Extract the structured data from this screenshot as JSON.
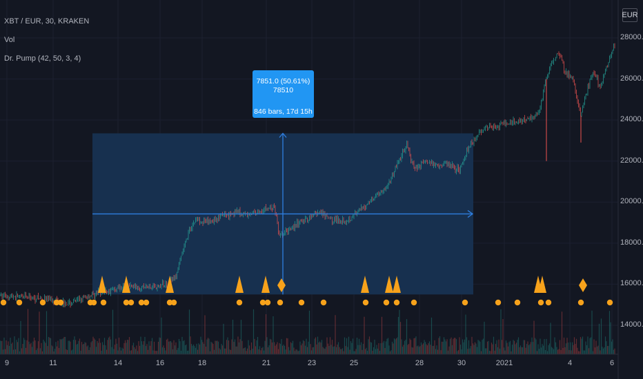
{
  "header": {
    "symbol": "XBT / EUR, 30, KRAKEN",
    "vol": "Vol",
    "indicator": "Dr. Pump (42, 50, 3, 4)"
  },
  "currency_button": "EUR",
  "measurement": {
    "line1": "7851.0 (50.61%) 78510",
    "line2": "846 bars, 17d 15h"
  },
  "chart_data": {
    "type": "candlestick",
    "y_axis": {
      "ticks": [
        28000,
        26000,
        24000,
        22000,
        20000,
        18000,
        16000,
        14000
      ],
      "tick_labels": [
        "28000.0",
        "26000.0",
        "24000.0",
        "22000.0",
        "20000.0",
        "18000.0",
        "16000.0",
        "14000.0"
      ]
    },
    "x_axis": {
      "tick_labels": [
        "9",
        "11",
        "14",
        "16",
        "18",
        "21",
        "23",
        "25",
        "28",
        "30",
        "2021",
        "4",
        "6"
      ]
    },
    "price_path": [
      [
        0,
        15450
      ],
      [
        40,
        15350
      ],
      [
        80,
        15250
      ],
      [
        100,
        15050
      ],
      [
        120,
        15300
      ],
      [
        140,
        15550
      ],
      [
        160,
        15700
      ],
      [
        180,
        15900
      ],
      [
        200,
        15850
      ],
      [
        230,
        15900
      ],
      [
        245,
        16050
      ],
      [
        255,
        16400
      ],
      [
        265,
        17600
      ],
      [
        275,
        18700
      ],
      [
        285,
        19200
      ],
      [
        300,
        19000
      ],
      [
        320,
        19300
      ],
      [
        340,
        19500
      ],
      [
        360,
        19400
      ],
      [
        380,
        19600
      ],
      [
        398,
        19750
      ],
      [
        405,
        18300
      ],
      [
        420,
        18700
      ],
      [
        440,
        19100
      ],
      [
        460,
        19500
      ],
      [
        480,
        19150
      ],
      [
        500,
        19100
      ],
      [
        520,
        19500
      ],
      [
        540,
        20200
      ],
      [
        560,
        20700
      ],
      [
        575,
        21800
      ],
      [
        590,
        22800
      ],
      [
        600,
        21600
      ],
      [
        615,
        22000
      ],
      [
        635,
        21800
      ],
      [
        650,
        21900
      ],
      [
        665,
        21500
      ],
      [
        680,
        22700
      ],
      [
        700,
        23600
      ],
      [
        720,
        23700
      ],
      [
        740,
        23900
      ],
      [
        760,
        24000
      ],
      [
        780,
        24300
      ],
      [
        790,
        25800
      ],
      [
        800,
        26800
      ],
      [
        810,
        27300
      ],
      [
        820,
        26300
      ],
      [
        830,
        26000
      ],
      [
        842,
        24200
      ],
      [
        850,
        25300
      ],
      [
        860,
        26400
      ],
      [
        870,
        25500
      ],
      [
        880,
        26700
      ],
      [
        890,
        27700
      ]
    ],
    "spikes": [
      {
        "x_index": 792,
        "low": 22000
      },
      {
        "x_index": 842,
        "low": 22900
      }
    ],
    "measure_range": {
      "from_price": 15500,
      "to_price": 23350,
      "change": "7851.0",
      "percent": "50.61%",
      "bars": 846
    },
    "triangles": [
      148,
      183,
      246,
      347,
      385,
      529,
      564,
      575,
      780,
      786
    ],
    "diamonds": [
      408,
      845
    ],
    "dots_row1": [
      5,
      28,
      62,
      82,
      88,
      131,
      136,
      150,
      183,
      190,
      205,
      212,
      246,
      252,
      347,
      381,
      388,
      406,
      437,
      469,
      530,
      560,
      575,
      600,
      674,
      722,
      750,
      784,
      795,
      842,
      884
    ]
  },
  "colors": {
    "background": "#131722",
    "up": "#26a69a",
    "down": "#ef5350",
    "marker": "#f7a21b",
    "measure_fill": "#1c3a5e",
    "measure_line": "#2962ff",
    "tooltip": "#2196f3"
  }
}
